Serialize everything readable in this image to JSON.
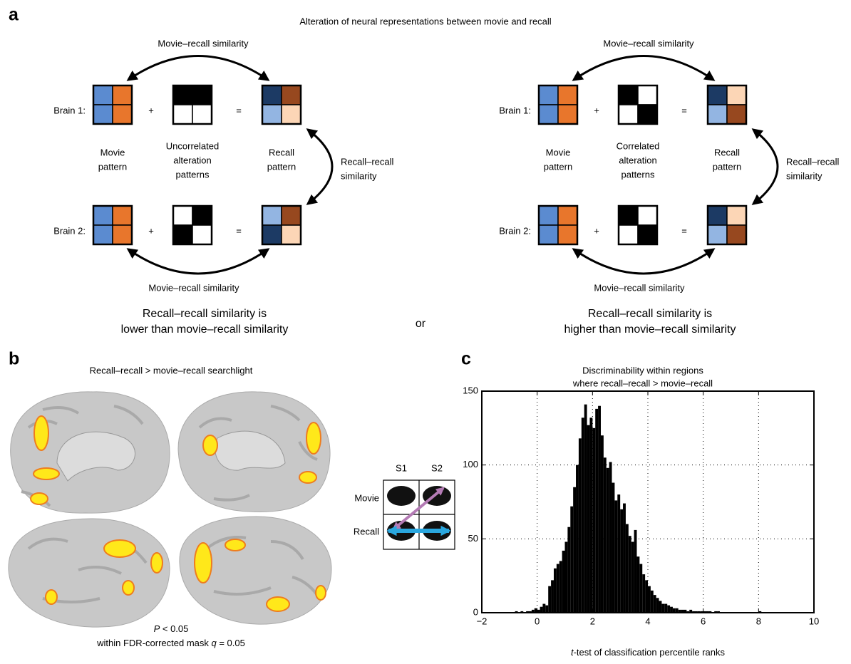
{
  "panel_a": {
    "label": "a",
    "title": "Alteration of neural representations between movie and recall",
    "plus": "+",
    "equals": "=",
    "or": "or",
    "brain_1": "Brain 1:",
    "brain_2": "Brain 2:",
    "movie_recall": "Movie–recall similarity",
    "recall_recall": [
      "Recall–recall",
      "similarity"
    ],
    "movie_pattern": [
      "Movie",
      "pattern"
    ],
    "recall_pattern": [
      "Recall",
      "pattern"
    ],
    "left": {
      "alteration": [
        "Uncorrelated",
        "alteration",
        "patterns"
      ],
      "conclusion": [
        "Recall–recall similarity is",
        "lower than movie–recall similarity"
      ]
    },
    "right": {
      "alteration": [
        "Correlated",
        "alteration",
        "patterns"
      ],
      "conclusion": [
        "Recall–recall similarity is",
        "higher than movie–recall similarity"
      ]
    }
  },
  "panel_b": {
    "label": "b",
    "title": "Recall–recall > movie–recall searchlight",
    "caption_1": [
      "P",
      " < 0.05"
    ],
    "caption_2": [
      "within FDR-corrected mask ",
      "q",
      " = 0.05"
    ],
    "inset": {
      "columns": [
        "S1",
        "S2"
      ],
      "rows": [
        "Movie",
        "Recall"
      ]
    }
  },
  "chart_data": {
    "type": "histogram",
    "label": "c",
    "title": [
      "Discriminability within regions",
      "where recall–recall > movie–recall"
    ],
    "xlabel": [
      "t",
      "-test of classification percentile ranks"
    ],
    "color": "#000000",
    "grid": true,
    "bins": [
      -0.8,
      -0.7,
      -0.6,
      -0.5,
      -0.4,
      -0.3,
      -0.2,
      -0.1,
      0.0,
      0.1,
      0.2,
      0.3,
      0.4,
      0.5,
      0.6,
      0.7,
      0.8,
      0.9,
      1.0,
      1.1,
      1.2,
      1.3,
      1.4,
      1.5,
      1.6,
      1.7,
      1.8,
      1.9,
      2.0,
      2.1,
      2.2,
      2.3,
      2.4,
      2.5,
      2.6,
      2.7,
      2.8,
      2.9,
      3.0,
      3.1,
      3.2,
      3.3,
      3.4,
      3.5,
      3.6,
      3.7,
      3.8,
      3.9,
      4.0,
      4.1,
      4.2,
      4.3,
      4.4,
      4.5,
      4.6,
      4.7,
      4.8,
      4.9,
      5.0,
      5.1,
      5.2,
      5.3,
      5.4,
      5.5,
      5.6,
      5.7,
      5.8,
      5.9,
      6.0,
      6.1,
      6.2,
      6.3,
      6.4,
      6.5,
      6.6,
      6.7,
      6.8,
      6.9,
      7.0,
      7.1,
      7.2,
      7.3,
      7.4,
      7.5,
      7.6,
      7.7,
      7.8,
      7.9,
      8.0,
      8.1,
      8.2
    ],
    "values": [
      1,
      0,
      1,
      0,
      1,
      1,
      2,
      3,
      2,
      4,
      6,
      5,
      18,
      22,
      30,
      33,
      35,
      42,
      48,
      58,
      72,
      85,
      100,
      118,
      132,
      141,
      127,
      132,
      125,
      138,
      140,
      120,
      105,
      98,
      102,
      88,
      76,
      80,
      70,
      74,
      60,
      52,
      48,
      56,
      38,
      33,
      26,
      22,
      18,
      15,
      12,
      10,
      8,
      6,
      6,
      5,
      4,
      3,
      3,
      2,
      2,
      2,
      1,
      2,
      1,
      1,
      1,
      1,
      1,
      1,
      1,
      0,
      1,
      1,
      0,
      0,
      0,
      0,
      0,
      0,
      0,
      0,
      0,
      0,
      0,
      0,
      0,
      0,
      1,
      0
    ],
    "xlim": [
      -2,
      10
    ],
    "ylim": [
      0,
      150
    ],
    "xticks": [
      {
        "value": -2,
        "label": "−2"
      },
      0,
      2,
      4,
      6,
      8,
      10
    ],
    "yticks": [
      0,
      50,
      100,
      150
    ]
  }
}
